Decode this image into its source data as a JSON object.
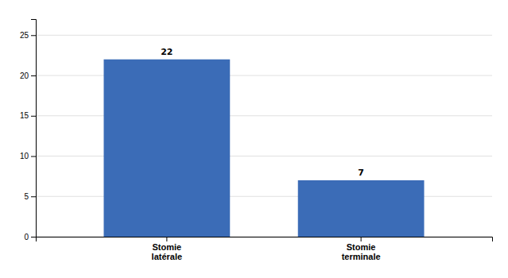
{
  "chart_data": {
    "type": "bar",
    "categories": [
      "Stomie\nlatérale",
      "Stomie\nterminale"
    ],
    "values": [
      22,
      7
    ],
    "color": "#3B6CB7",
    "ylim": [
      0,
      27
    ],
    "yticks": [
      0,
      5,
      10,
      15,
      20,
      25
    ],
    "grid": true,
    "data_labels": true
  }
}
